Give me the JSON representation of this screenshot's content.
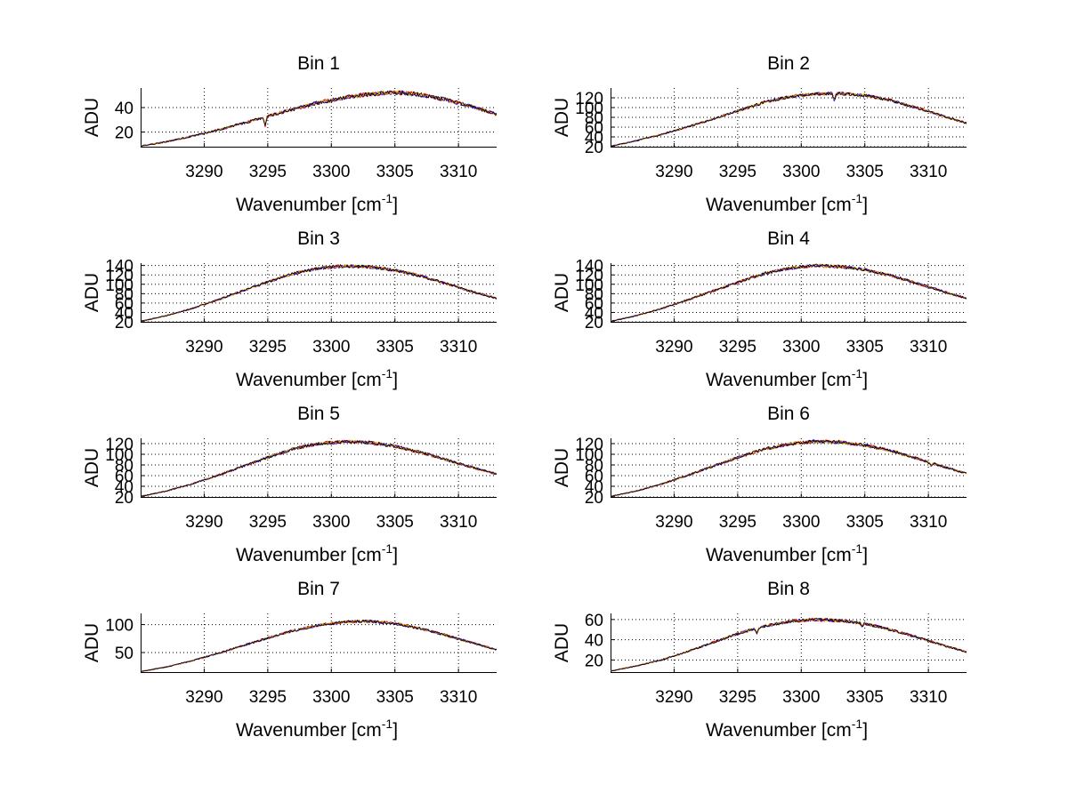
{
  "figure": {
    "background": "#ffffff",
    "series_colors": [
      "#ff0000",
      "#0000ff",
      "#e0b000",
      "#000000"
    ]
  },
  "chart_data": [
    {
      "type": "line",
      "title": "Bin 1",
      "xlabel": "Wavenumber [cm",
      "xlabel_sup": "-1",
      "xlabel_end": "]",
      "ylabel": "ADU",
      "xlim": [
        3285,
        3313
      ],
      "ylim": [
        8,
        56
      ],
      "xticks": [
        3290,
        3295,
        3300,
        3305,
        3310
      ],
      "yticks": [
        20,
        40
      ],
      "profile": [
        [
          3285,
          8.5
        ],
        [
          3287,
          12
        ],
        [
          3289,
          16.5
        ],
        [
          3291,
          21.5
        ],
        [
          3293,
          27
        ],
        [
          3295,
          33
        ],
        [
          3297,
          38.5
        ],
        [
          3299,
          44
        ],
        [
          3301,
          48
        ],
        [
          3303,
          51
        ],
        [
          3305,
          52.5
        ],
        [
          3307,
          50.5
        ],
        [
          3309,
          46.5
        ],
        [
          3311,
          41
        ],
        [
          3313,
          34.5
        ]
      ],
      "noise": 1.6,
      "dips": [
        [
          3294.8,
          -7
        ],
        [
          3306.3,
          0
        ]
      ]
    },
    {
      "type": "line",
      "title": "Bin 2",
      "xlabel": "Wavenumber [cm",
      "xlabel_sup": "-1",
      "xlabel_end": "]",
      "ylabel": "ADU",
      "xlim": [
        3285,
        3313
      ],
      "ylim": [
        20,
        140
      ],
      "xticks": [
        3290,
        3295,
        3300,
        3305,
        3310
      ],
      "yticks": [
        20,
        40,
        60,
        80,
        100,
        120
      ],
      "profile": [
        [
          3285,
          21
        ],
        [
          3287,
          32
        ],
        [
          3289,
          45
        ],
        [
          3291,
          60
        ],
        [
          3293,
          76
        ],
        [
          3295,
          93
        ],
        [
          3297,
          110
        ],
        [
          3299,
          122
        ],
        [
          3301,
          128
        ],
        [
          3303,
          129
        ],
        [
          3305,
          125
        ],
        [
          3307,
          115
        ],
        [
          3309,
          100
        ],
        [
          3311,
          84
        ],
        [
          3313,
          68
        ]
      ],
      "noise": 3,
      "dips": [
        [
          3302.6,
          -14
        ]
      ]
    },
    {
      "type": "line",
      "title": "Bin 3",
      "xlabel": "Wavenumber [cm",
      "xlabel_sup": "-1",
      "xlabel_end": "]",
      "ylabel": "ADU",
      "xlim": [
        3285,
        3313
      ],
      "ylim": [
        20,
        145
      ],
      "xticks": [
        3290,
        3295,
        3300,
        3305,
        3310
      ],
      "yticks": [
        20,
        40,
        60,
        80,
        100,
        120,
        140
      ],
      "profile": [
        [
          3285,
          21
        ],
        [
          3287,
          33
        ],
        [
          3289,
          48
        ],
        [
          3291,
          66
        ],
        [
          3293,
          86
        ],
        [
          3295,
          105
        ],
        [
          3297,
          123
        ],
        [
          3299,
          134
        ],
        [
          3301,
          139
        ],
        [
          3303,
          137
        ],
        [
          3305,
          130
        ],
        [
          3307,
          118
        ],
        [
          3309,
          102
        ],
        [
          3311,
          85
        ],
        [
          3313,
          70
        ]
      ],
      "noise": 3,
      "dips": []
    },
    {
      "type": "line",
      "title": "Bin 4",
      "xlabel": "Wavenumber [cm",
      "xlabel_sup": "-1",
      "xlabel_end": "]",
      "ylabel": "ADU",
      "xlim": [
        3285,
        3313
      ],
      "ylim": [
        20,
        145
      ],
      "xticks": [
        3290,
        3295,
        3300,
        3305,
        3310
      ],
      "yticks": [
        20,
        40,
        60,
        80,
        100,
        120,
        140
      ],
      "profile": [
        [
          3285,
          21
        ],
        [
          3287,
          33
        ],
        [
          3289,
          48
        ],
        [
          3291,
          66
        ],
        [
          3293,
          85
        ],
        [
          3295,
          104
        ],
        [
          3297,
          122
        ],
        [
          3299,
          134
        ],
        [
          3301,
          140
        ],
        [
          3303,
          138
        ],
        [
          3305,
          131
        ],
        [
          3307,
          119
        ],
        [
          3309,
          103
        ],
        [
          3311,
          86
        ],
        [
          3313,
          70
        ]
      ],
      "noise": 3,
      "dips": []
    },
    {
      "type": "line",
      "title": "Bin 5",
      "xlabel": "Wavenumber [cm",
      "xlabel_sup": "-1",
      "xlabel_end": "]",
      "ylabel": "ADU",
      "xlim": [
        3285,
        3313
      ],
      "ylim": [
        20,
        130
      ],
      "xticks": [
        3290,
        3295,
        3300,
        3305,
        3310
      ],
      "yticks": [
        20,
        40,
        60,
        80,
        100,
        120
      ],
      "profile": [
        [
          3285,
          21
        ],
        [
          3287,
          31
        ],
        [
          3289,
          44
        ],
        [
          3291,
          60
        ],
        [
          3293,
          77
        ],
        [
          3295,
          94
        ],
        [
          3297,
          110
        ],
        [
          3299,
          120
        ],
        [
          3301,
          124
        ],
        [
          3303,
          122
        ],
        [
          3305,
          115
        ],
        [
          3307,
          104
        ],
        [
          3309,
          90
        ],
        [
          3311,
          76
        ],
        [
          3313,
          63
        ]
      ],
      "noise": 2.8,
      "dips": []
    },
    {
      "type": "line",
      "title": "Bin 6",
      "xlabel": "Wavenumber [cm",
      "xlabel_sup": "-1",
      "xlabel_end": "]",
      "ylabel": "ADU",
      "xlim": [
        3285,
        3313
      ],
      "ylim": [
        20,
        130
      ],
      "xticks": [
        3290,
        3295,
        3300,
        3305,
        3310
      ],
      "yticks": [
        20,
        40,
        60,
        80,
        100,
        120
      ],
      "profile": [
        [
          3285,
          21
        ],
        [
          3287,
          31
        ],
        [
          3289,
          44
        ],
        [
          3291,
          60
        ],
        [
          3293,
          77
        ],
        [
          3295,
          94
        ],
        [
          3297,
          109
        ],
        [
          3299,
          119
        ],
        [
          3301,
          124
        ],
        [
          3303,
          123
        ],
        [
          3305,
          117
        ],
        [
          3307,
          107
        ],
        [
          3309,
          93
        ],
        [
          3311,
          78
        ],
        [
          3313,
          64
        ]
      ],
      "noise": 2.8,
      "dips": [
        [
          3310.2,
          -6
        ]
      ]
    },
    {
      "type": "line",
      "title": "Bin 7",
      "xlabel": "Wavenumber [cm",
      "xlabel_sup": "-1",
      "xlabel_end": "]",
      "ylabel": "ADU",
      "xlim": [
        3285,
        3313
      ],
      "ylim": [
        15,
        120
      ],
      "xticks": [
        3290,
        3295,
        3300,
        3305,
        3310
      ],
      "yticks": [
        50,
        100
      ],
      "profile": [
        [
          3285,
          16
        ],
        [
          3287,
          24
        ],
        [
          3289,
          35
        ],
        [
          3291,
          48
        ],
        [
          3293,
          62
        ],
        [
          3295,
          76
        ],
        [
          3297,
          89
        ],
        [
          3299,
          99
        ],
        [
          3301,
          105
        ],
        [
          3303,
          106
        ],
        [
          3305,
          102
        ],
        [
          3307,
          93
        ],
        [
          3309,
          81
        ],
        [
          3311,
          68
        ],
        [
          3313,
          55
        ]
      ],
      "noise": 2.4,
      "dips": []
    },
    {
      "type": "line",
      "title": "Bin 8",
      "xlabel": "Wavenumber [cm",
      "xlabel_sup": "-1",
      "xlabel_end": "]",
      "ylabel": "ADU",
      "xlim": [
        3285,
        3313
      ],
      "ylim": [
        8,
        66
      ],
      "xticks": [
        3290,
        3295,
        3300,
        3305,
        3310
      ],
      "yticks": [
        20,
        40,
        60
      ],
      "profile": [
        [
          3285,
          9
        ],
        [
          3287,
          14
        ],
        [
          3289,
          20
        ],
        [
          3291,
          28
        ],
        [
          3293,
          37
        ],
        [
          3295,
          46
        ],
        [
          3297,
          53
        ],
        [
          3299,
          58
        ],
        [
          3301,
          60
        ],
        [
          3303,
          59
        ],
        [
          3305,
          56
        ],
        [
          3307,
          50
        ],
        [
          3309,
          43
        ],
        [
          3311,
          35
        ],
        [
          3313,
          28
        ]
      ],
      "noise": 1.4,
      "dips": [
        [
          3296.5,
          -5
        ],
        [
          3304.8,
          -3
        ]
      ]
    }
  ]
}
